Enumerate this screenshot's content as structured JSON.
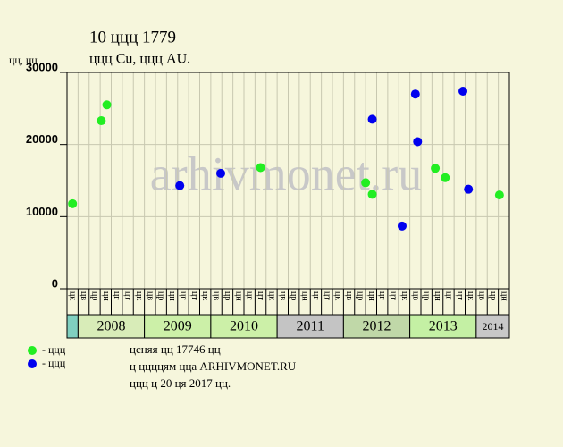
{
  "chart_data": {
    "type": "scatter",
    "title": "10 ццц 1779",
    "subtitle": "ццц Cu, ццц AU.",
    "y_label": "цц, цц",
    "watermark": "arhivmonet.ru",
    "xlim": [
      0,
      40
    ],
    "ylim": [
      0,
      30000
    ],
    "yticks": [
      0,
      10000,
      20000,
      30000
    ],
    "grid": true,
    "x_labels": [
      "цк",
      "цв",
      "цр",
      "цн",
      "цг",
      "цт",
      "цк",
      "цв",
      "цр",
      "цн",
      "цг",
      "цт",
      "цк",
      "цв",
      "цр",
      "цн",
      "цг",
      "цт",
      "цк",
      "цв",
      "цр",
      "цн",
      "цг",
      "цт",
      "цк",
      "цв",
      "цр",
      "цн",
      "цг",
      "цт",
      "цк",
      "цв",
      "цр",
      "цн",
      "цг",
      "цт",
      "цк",
      "цв",
      "цр",
      "цн"
    ],
    "years": [
      {
        "label": null,
        "range": [
          0,
          1
        ],
        "color": "#80d0c0"
      },
      {
        "label": "2008",
        "range": [
          1,
          7
        ],
        "color": "#d8ecb8"
      },
      {
        "label": "2009",
        "range": [
          7,
          13
        ],
        "color": "#ccf0a8"
      },
      {
        "label": "2010",
        "range": [
          13,
          19
        ],
        "color": "#ccf0a8"
      },
      {
        "label": "2011",
        "range": [
          19,
          25
        ],
        "color": "#c4c4c4"
      },
      {
        "label": "2012",
        "range": [
          25,
          31
        ],
        "color": "#c0d8a8"
      },
      {
        "label": "2013",
        "range": [
          31,
          37
        ],
        "color": "#c4f0a4"
      },
      {
        "label": "2014",
        "range": [
          37,
          40
        ],
        "color": "#c8c8c8"
      }
    ],
    "series": [
      {
        "name": "- ццц",
        "color": "#22ee22",
        "x": [
          0.5,
          3.1,
          3.6,
          17.5,
          27.0,
          27.6,
          33.3,
          34.2,
          39.1
        ],
        "values": [
          11800,
          23300,
          25500,
          16800,
          14700,
          13100,
          16700,
          15400,
          13000
        ]
      },
      {
        "name": "- ццц",
        "color": "#0000ee",
        "x": [
          10.2,
          13.9,
          27.6,
          31.5,
          31.7,
          30.3,
          35.8,
          36.3
        ],
        "values": [
          14300,
          16000,
          23500,
          27000,
          20400,
          8700,
          27400,
          13800
        ]
      }
    ],
    "notes": [
      "цcняя цц 17746 цц",
      "ц ццццям цца ARHIVMONET.RU",
      "ццц ц 20 ця 2017 цц."
    ]
  }
}
